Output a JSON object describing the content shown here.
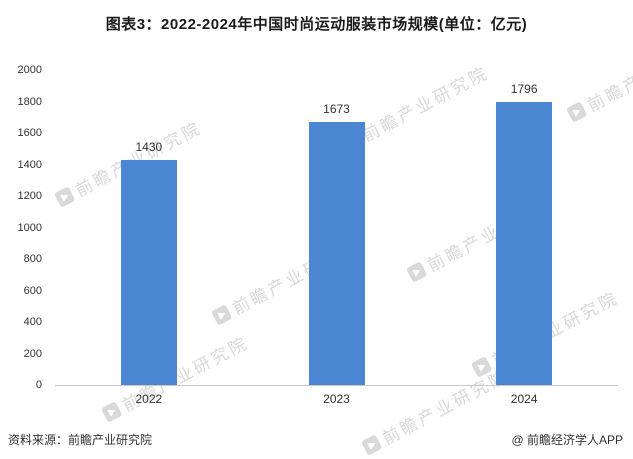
{
  "title": "图表3：2022-2024年中国时尚运动服装市场规模(单位：亿元)",
  "chart_data": {
    "type": "bar",
    "title": "图表3：2022-2024年中国时尚运动服装市场规模(单位：亿元)",
    "categories": [
      "2022",
      "2023",
      "2024"
    ],
    "values": [
      1430,
      1673,
      1796
    ],
    "unit": "亿元",
    "ylim": [
      0,
      2000
    ],
    "ytick_interval": 200,
    "bar_color": "#4a86d2",
    "grid": false,
    "legend": "none"
  },
  "footer": {
    "source": "资料来源：前瞻产业研究院",
    "brand": "@ 前瞻经济学人APP"
  },
  "watermark": {
    "text": "前瞻产业研究院"
  }
}
